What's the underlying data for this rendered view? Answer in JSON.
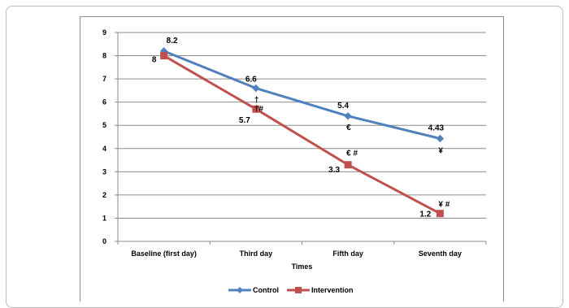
{
  "chart_data": {
    "type": "line",
    "xlabel": "Times",
    "ylabel": "",
    "ylim": [
      0,
      9
    ],
    "yticks": [
      "0",
      "1",
      "2",
      "3",
      "4",
      "5",
      "6",
      "7",
      "8",
      "9"
    ],
    "categories": [
      "Baseline (first day)",
      "Third day",
      "Fifth day",
      "Seventh day"
    ],
    "grid": true,
    "legend_position": "bottom",
    "series": [
      {
        "name": "Control",
        "color": "#4f81bd",
        "marker": "diamond",
        "values": [
          8.2,
          6.6,
          5.4,
          4.43
        ],
        "labels": [
          "8.2",
          "6.6",
          "5.4",
          "4.43"
        ]
      },
      {
        "name": "Intervention",
        "color": "#c0504d",
        "marker": "square",
        "values": [
          8,
          5.7,
          3.3,
          1.2
        ],
        "labels": [
          "8",
          "5.7",
          "3.3",
          "1.2"
        ]
      }
    ],
    "annotations": [
      {
        "text": "†",
        "category": "Third day",
        "y": 6.1
      },
      {
        "text": "†#",
        "category": "Third day",
        "y": 5.7
      },
      {
        "text": "€",
        "category": "Fifth day",
        "y": 4.9
      },
      {
        "text": "€ #",
        "category": "Fifth day",
        "y": 3.8
      },
      {
        "text": "¥",
        "category": "Seventh day",
        "y": 3.9
      },
      {
        "text": "¥ #",
        "category": "Seventh day",
        "y": 1.6
      }
    ]
  }
}
